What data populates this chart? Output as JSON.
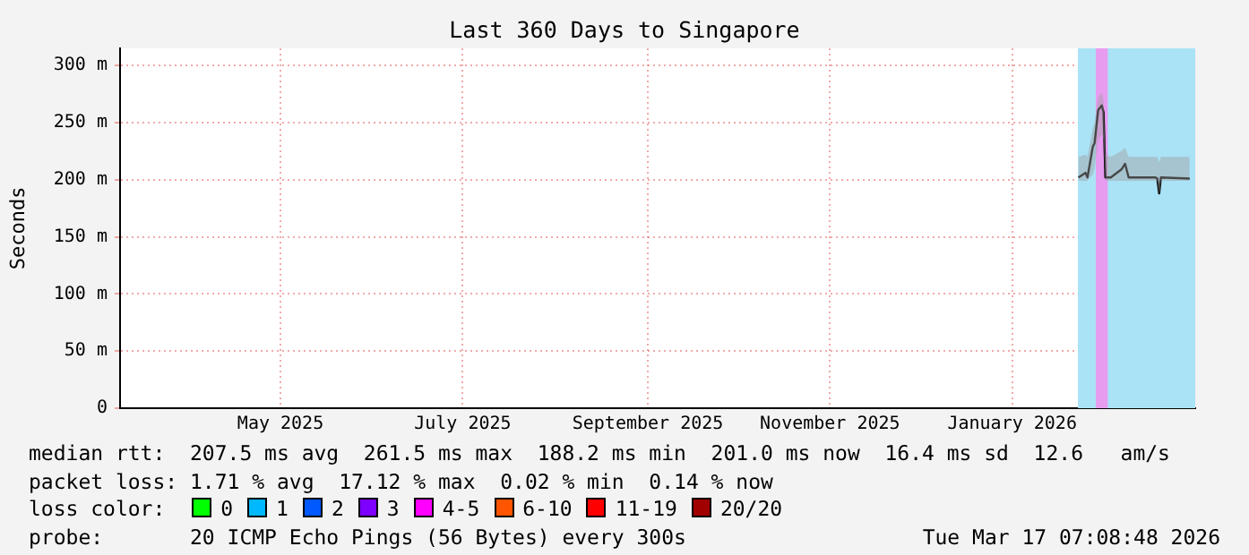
{
  "chart_data": {
    "type": "line",
    "title": "Last 360 Days to Singapore",
    "ylabel": "Seconds",
    "xlim": [
      "2025-03-22T07:00",
      "2026-03-17T07:00"
    ],
    "xticks": [
      {
        "value": "2025-05-15",
        "label": "May 2025"
      },
      {
        "value": "2025-07-15",
        "label": "July 2025"
      },
      {
        "value": "2025-09-15",
        "label": "September 2025"
      },
      {
        "value": "2025-11-15",
        "label": "November 2025"
      },
      {
        "value": "2026-01-15",
        "label": "January 2026"
      }
    ],
    "ylim": [
      0,
      315
    ],
    "yticks": [
      {
        "value": 0,
        "label": "0"
      },
      {
        "value": 50,
        "label": "50 m"
      },
      {
        "value": 100,
        "label": "100 m"
      },
      {
        "value": 150,
        "label": "150 m"
      },
      {
        "value": 200,
        "label": "200 m"
      },
      {
        "value": 250,
        "label": "250 m"
      },
      {
        "value": 300,
        "label": "300 m"
      }
    ],
    "grid": true,
    "legend": "bottom",
    "legend_title": "loss color:",
    "bands": [
      {
        "axis": "x",
        "from": "2026-02-06",
        "to": "2026-03-17T07:00",
        "color": "#aae2f6"
      },
      {
        "axis": "x",
        "from": "2026-02-12",
        "to": "2026-02-16",
        "color": "#e79cf0"
      }
    ],
    "series": [
      {
        "color": "#000000",
        "x": [
          "2026-02-06T05:00",
          "2026-02-08T14:00",
          "2026-02-09T05:00",
          "2026-02-11",
          "2026-02-11T14:00",
          "2026-02-12T19:00",
          "2026-02-14",
          "2026-02-14T14:00",
          "2026-02-15T05:00",
          "2026-02-17",
          "2026-02-20T14:00",
          "2026-02-21T19:00",
          "2026-02-23",
          "2026-02-24T19:00",
          "2026-03-04",
          "2026-03-04T14:00",
          "2026-03-05T05:00",
          "2026-03-05T19:00",
          "2026-03-15T10:00"
        ],
        "values": [
          202,
          206,
          202,
          229,
          232,
          261,
          265,
          259,
          202,
          202,
          209,
          214,
          202,
          202,
          202,
          201,
          188,
          202,
          201
        ],
        "lower": [
          199,
          199,
          199,
          205,
          210,
          235,
          240,
          235,
          199,
          199,
          199,
          199,
          199,
          199,
          199,
          199,
          186,
          199,
          199
        ],
        "upper": [
          220,
          222,
          220,
          245,
          250,
          272,
          276,
          270,
          222,
          220,
          225,
          228,
          220,
          220,
          220,
          220,
          215,
          220,
          220
        ]
      },
      {
        "name": "0",
        "color": "#00ff00"
      },
      {
        "name": "1",
        "color": "#00b8ff"
      },
      {
        "name": "2",
        "color": "#0059ff"
      },
      {
        "name": "3",
        "color": "#7e00ff"
      },
      {
        "name": "4-5",
        "color": "#ff00ff"
      },
      {
        "name": "6-10",
        "color": "#ff5500"
      },
      {
        "name": "11-19",
        "color": "#ff0000"
      },
      {
        "name": "20/20",
        "color": "#a10000"
      }
    ],
    "annotations": [
      "median rtt:  207.5 ms avg  261.5 ms max  188.2 ms min  201.0 ms now  16.4 ms sd  12.6   am/s",
      "packet loss: 1.71 % avg  17.12 % max  0.02 % min  0.14 % now",
      "probe:       20 ICMP Echo Pings (56 Bytes) every 300s",
      "Tue Mar 17 07:08:48 2026"
    ]
  }
}
